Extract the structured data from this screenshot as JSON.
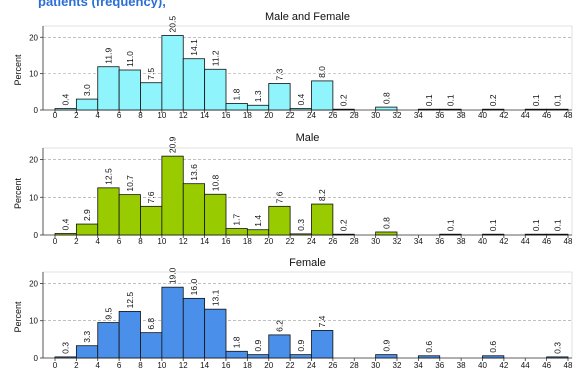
{
  "header": {
    "fragment": "patients (frequency),"
  },
  "chart_data": [
    {
      "type": "bar",
      "title": "Male and Female",
      "ylabel": "Percent",
      "ylim": [
        0,
        22
      ],
      "yticks": [
        0,
        10,
        20
      ],
      "xlim": [
        0,
        48
      ],
      "xticks": [
        0,
        2,
        4,
        6,
        8,
        10,
        12,
        14,
        16,
        18,
        20,
        22,
        24,
        26,
        28,
        30,
        32,
        34,
        36,
        38,
        40,
        42,
        44,
        46,
        48
      ],
      "bin_width": 2,
      "bins": [
        {
          "start": 0,
          "value": 0.4
        },
        {
          "start": 2,
          "value": 3.0
        },
        {
          "start": 4,
          "value": 11.9
        },
        {
          "start": 6,
          "value": 11.0
        },
        {
          "start": 8,
          "value": 7.5
        },
        {
          "start": 10,
          "value": 20.5
        },
        {
          "start": 12,
          "value": 14.1
        },
        {
          "start": 14,
          "value": 11.2
        },
        {
          "start": 16,
          "value": 1.8
        },
        {
          "start": 18,
          "value": 1.3
        },
        {
          "start": 20,
          "value": 7.3
        },
        {
          "start": 22,
          "value": 0.4
        },
        {
          "start": 24,
          "value": 8.0
        },
        {
          "start": 26,
          "value": 0.2
        },
        {
          "start": 30,
          "value": 0.8
        },
        {
          "start": 34,
          "value": 0.1
        },
        {
          "start": 36,
          "value": 0.1
        },
        {
          "start": 40,
          "value": 0.2
        },
        {
          "start": 44,
          "value": 0.1
        },
        {
          "start": 46,
          "value": 0.1
        }
      ],
      "color": "#8ff4fb",
      "grid": true
    },
    {
      "type": "bar",
      "title": "Male",
      "ylabel": "Percent",
      "ylim": [
        0,
        22
      ],
      "yticks": [
        0,
        10,
        20
      ],
      "xlim": [
        0,
        48
      ],
      "xticks": [
        0,
        2,
        4,
        6,
        8,
        10,
        12,
        14,
        16,
        18,
        20,
        22,
        24,
        26,
        28,
        30,
        32,
        34,
        36,
        38,
        40,
        42,
        44,
        46,
        48
      ],
      "bin_width": 2,
      "bins": [
        {
          "start": 0,
          "value": 0.4
        },
        {
          "start": 2,
          "value": 2.9
        },
        {
          "start": 4,
          "value": 12.5
        },
        {
          "start": 6,
          "value": 10.7
        },
        {
          "start": 8,
          "value": 7.6
        },
        {
          "start": 10,
          "value": 20.9
        },
        {
          "start": 12,
          "value": 13.6
        },
        {
          "start": 14,
          "value": 10.8
        },
        {
          "start": 16,
          "value": 1.7
        },
        {
          "start": 18,
          "value": 1.4
        },
        {
          "start": 20,
          "value": 7.6
        },
        {
          "start": 22,
          "value": 0.3
        },
        {
          "start": 24,
          "value": 8.2
        },
        {
          "start": 26,
          "value": 0.2
        },
        {
          "start": 30,
          "value": 0.8
        },
        {
          "start": 36,
          "value": 0.1
        },
        {
          "start": 40,
          "value": 0.1
        },
        {
          "start": 44,
          "value": 0.1
        },
        {
          "start": 46,
          "value": 0.1
        }
      ],
      "color": "#99cc00",
      "grid": true
    },
    {
      "type": "bar",
      "title": "Female",
      "ylabel": "Percent",
      "ylim": [
        0,
        22
      ],
      "yticks": [
        0,
        10,
        20
      ],
      "xlim": [
        0,
        48
      ],
      "xticks": [
        0,
        2,
        4,
        6,
        8,
        10,
        12,
        14,
        16,
        18,
        20,
        22,
        24,
        26,
        28,
        30,
        32,
        34,
        36,
        38,
        40,
        42,
        44,
        46,
        48
      ],
      "bin_width": 2,
      "bins": [
        {
          "start": 0,
          "value": 0.3
        },
        {
          "start": 2,
          "value": 3.3
        },
        {
          "start": 4,
          "value": 9.5
        },
        {
          "start": 6,
          "value": 12.5
        },
        {
          "start": 8,
          "value": 6.8
        },
        {
          "start": 10,
          "value": 19.0
        },
        {
          "start": 12,
          "value": 16.0
        },
        {
          "start": 14,
          "value": 13.1
        },
        {
          "start": 16,
          "value": 1.8
        },
        {
          "start": 18,
          "value": 0.9
        },
        {
          "start": 20,
          "value": 6.2
        },
        {
          "start": 22,
          "value": 0.9
        },
        {
          "start": 24,
          "value": 7.4
        },
        {
          "start": 30,
          "value": 0.9
        },
        {
          "start": 34,
          "value": 0.6
        },
        {
          "start": 40,
          "value": 0.6
        },
        {
          "start": 46,
          "value": 0.3
        }
      ],
      "color": "#4a90ea",
      "grid": true
    }
  ]
}
